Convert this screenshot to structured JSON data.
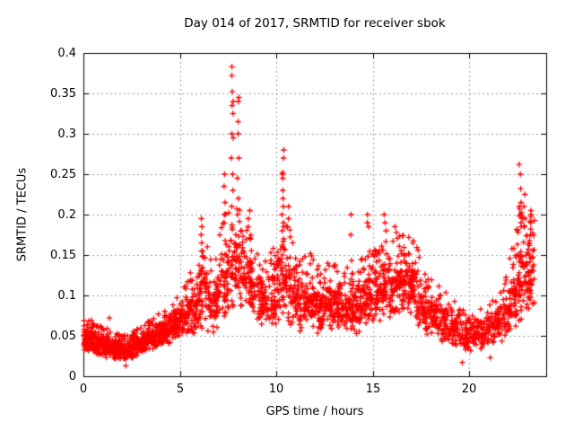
{
  "chart_data": {
    "type": "scatter",
    "title": "Day 014 of 2017, SRMTID for receiver sbok",
    "xlabel": "GPS time / hours",
    "ylabel": "SRMTID / TECUs",
    "xlim": [
      0,
      24
    ],
    "ylim": [
      0,
      0.4
    ],
    "xticks": [
      {
        "v": 0,
        "label": "0"
      },
      {
        "v": 5,
        "label": "5"
      },
      {
        "v": 10,
        "label": "10"
      },
      {
        "v": 15,
        "label": "15"
      },
      {
        "v": 20,
        "label": "20"
      }
    ],
    "yticks": [
      {
        "v": 0.0,
        "label": "0"
      },
      {
        "v": 0.05,
        "label": "0.05"
      },
      {
        "v": 0.1,
        "label": "0.1"
      },
      {
        "v": 0.15,
        "label": "0.15"
      },
      {
        "v": 0.2,
        "label": "0.2"
      },
      {
        "v": 0.25,
        "label": "0.25"
      },
      {
        "v": 0.3,
        "label": "0.3"
      },
      {
        "v": 0.35,
        "label": "0.35"
      },
      {
        "v": 0.4,
        "label": "0.4"
      }
    ],
    "grid": true,
    "legend": "none",
    "marker": {
      "shape": "plus",
      "color": "#ff0000",
      "size": 7
    },
    "colors": {
      "background": "#ffffff",
      "border": "#000000",
      "grid": "#9e9e9e",
      "text": "#000000"
    },
    "seed": 20170114,
    "envelope_bins": [
      [
        0.0,
        0.5,
        0.028,
        0.068,
        75
      ],
      [
        0.5,
        1.0,
        0.025,
        0.06,
        75
      ],
      [
        1.0,
        1.5,
        0.022,
        0.055,
        75
      ],
      [
        1.5,
        2.0,
        0.018,
        0.05,
        75
      ],
      [
        2.0,
        2.5,
        0.018,
        0.048,
        75
      ],
      [
        2.5,
        3.0,
        0.024,
        0.055,
        70
      ],
      [
        3.0,
        3.5,
        0.03,
        0.062,
        65
      ],
      [
        3.5,
        4.0,
        0.032,
        0.072,
        65
      ],
      [
        4.0,
        4.5,
        0.038,
        0.078,
        62
      ],
      [
        4.5,
        5.0,
        0.042,
        0.09,
        62
      ],
      [
        5.0,
        5.5,
        0.048,
        0.105,
        58
      ],
      [
        5.5,
        6.0,
        0.05,
        0.12,
        58
      ],
      [
        6.0,
        6.5,
        0.058,
        0.165,
        56
      ],
      [
        6.5,
        7.0,
        0.05,
        0.125,
        52
      ],
      [
        7.0,
        7.5,
        0.07,
        0.185,
        52
      ],
      [
        7.5,
        8.0,
        0.08,
        0.2,
        52
      ],
      [
        8.0,
        8.5,
        0.08,
        0.195,
        52
      ],
      [
        8.5,
        9.0,
        0.075,
        0.16,
        52
      ],
      [
        9.0,
        9.5,
        0.06,
        0.135,
        52
      ],
      [
        9.5,
        10.0,
        0.055,
        0.15,
        52
      ],
      [
        10.0,
        10.5,
        0.068,
        0.185,
        52
      ],
      [
        10.5,
        11.0,
        0.06,
        0.17,
        52
      ],
      [
        11.0,
        11.5,
        0.055,
        0.14,
        56
      ],
      [
        11.5,
        12.0,
        0.06,
        0.15,
        56
      ],
      [
        12.0,
        12.5,
        0.05,
        0.125,
        56
      ],
      [
        12.5,
        13.0,
        0.06,
        0.135,
        56
      ],
      [
        13.0,
        13.5,
        0.05,
        0.125,
        56
      ],
      [
        13.5,
        14.0,
        0.055,
        0.14,
        56
      ],
      [
        14.0,
        14.5,
        0.05,
        0.135,
        56
      ],
      [
        14.5,
        15.0,
        0.06,
        0.155,
        56
      ],
      [
        15.0,
        15.5,
        0.065,
        0.145,
        56
      ],
      [
        15.5,
        16.0,
        0.07,
        0.165,
        56
      ],
      [
        16.0,
        16.5,
        0.07,
        0.16,
        56
      ],
      [
        16.5,
        17.0,
        0.08,
        0.17,
        60
      ],
      [
        17.0,
        17.5,
        0.06,
        0.16,
        56
      ],
      [
        17.5,
        18.0,
        0.05,
        0.12,
        50
      ],
      [
        18.0,
        18.5,
        0.045,
        0.115,
        50
      ],
      [
        18.5,
        19.0,
        0.04,
        0.1,
        46
      ],
      [
        19.0,
        19.5,
        0.032,
        0.09,
        46
      ],
      [
        19.5,
        20.0,
        0.028,
        0.075,
        44
      ],
      [
        20.0,
        20.5,
        0.032,
        0.08,
        44
      ],
      [
        20.5,
        21.0,
        0.03,
        0.078,
        40
      ],
      [
        21.0,
        21.5,
        0.038,
        0.088,
        44
      ],
      [
        21.5,
        22.0,
        0.042,
        0.1,
        46
      ],
      [
        22.0,
        22.5,
        0.05,
        0.155,
        56
      ],
      [
        22.5,
        23.0,
        0.07,
        0.195,
        60
      ],
      [
        23.0,
        23.4,
        0.08,
        0.185,
        50
      ]
    ],
    "spike_columns": [
      {
        "t": 6.15,
        "values": [
          0.195,
          0.185,
          0.175,
          0.165,
          0.155,
          0.148
        ]
      },
      {
        "t": 7.35,
        "values": [
          0.25,
          0.235,
          0.215,
          0.2,
          0.19
        ]
      },
      {
        "t": 7.72,
        "values": [
          0.383,
          0.372,
          0.352,
          0.34,
          0.335,
          0.325,
          0.3,
          0.295,
          0.27,
          0.25,
          0.23,
          0.21
        ]
      },
      {
        "t": 8.05,
        "values": [
          0.345,
          0.34,
          0.315,
          0.3,
          0.27,
          0.245,
          0.22,
          0.2
        ]
      },
      {
        "t": 8.6,
        "values": [
          0.205,
          0.195,
          0.185,
          0.17
        ]
      },
      {
        "t": 10.35,
        "values": [
          0.28,
          0.27,
          0.252,
          0.25,
          0.245,
          0.23,
          0.22,
          0.21,
          0.2,
          0.19,
          0.18,
          0.17,
          0.16
        ]
      },
      {
        "t": 10.6,
        "values": [
          0.21,
          0.195,
          0.185
        ]
      },
      {
        "t": 13.85,
        "values": [
          0.2,
          0.175
        ]
      },
      {
        "t": 14.75,
        "values": [
          0.2,
          0.19,
          0.185
        ]
      },
      {
        "t": 15.65,
        "values": [
          0.2,
          0.19,
          0.18
        ]
      },
      {
        "t": 16.2,
        "values": [
          0.185,
          0.178
        ]
      },
      {
        "t": 22.65,
        "values": [
          0.262,
          0.25,
          0.232,
          0.215,
          0.21,
          0.207,
          0.2,
          0.198,
          0.19,
          0.185
        ]
      },
      {
        "t": 22.85,
        "values": [
          0.225,
          0.21,
          0.195,
          0.185
        ]
      },
      {
        "t": 23.2,
        "values": [
          0.205,
          0.2,
          0.19,
          0.182,
          0.175,
          0.168
        ]
      }
    ],
    "outliers": [
      [
        1.35,
        0.072
      ],
      [
        2.2,
        0.013
      ],
      [
        4.85,
        0.097
      ],
      [
        5.55,
        0.128
      ],
      [
        19.65,
        0.017
      ],
      [
        21.1,
        0.023
      ]
    ]
  }
}
